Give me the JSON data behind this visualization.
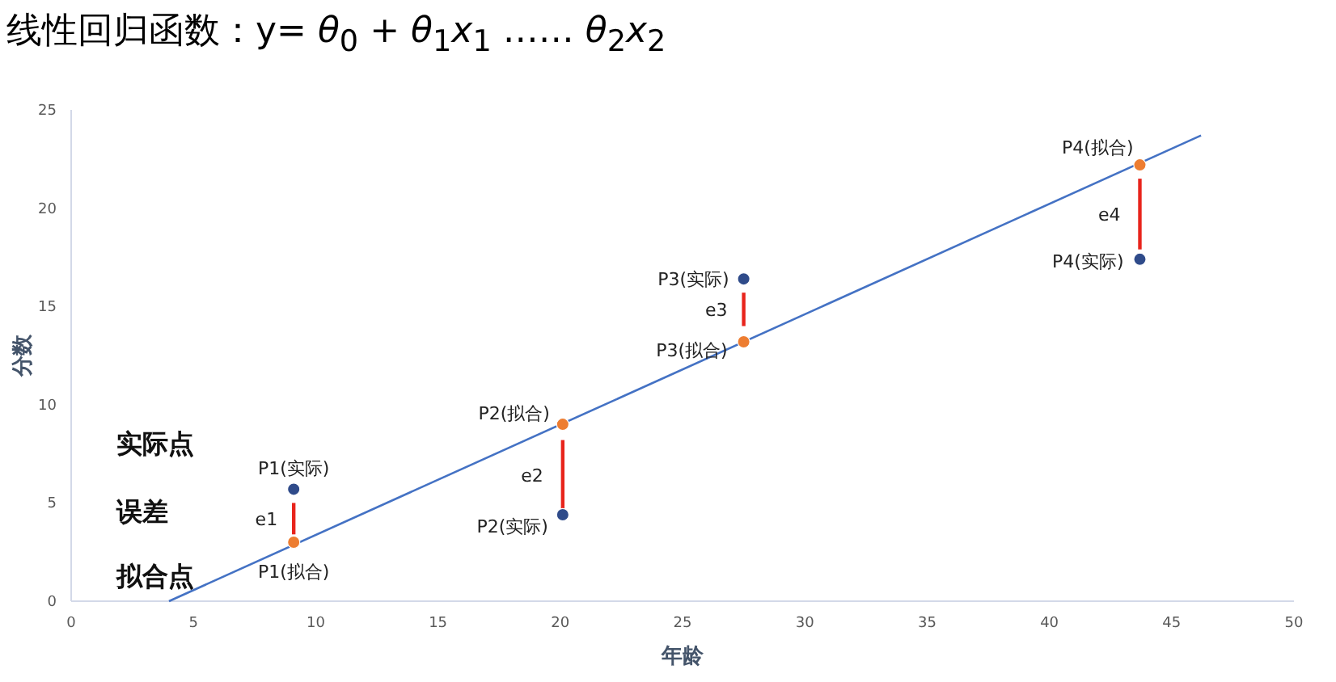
{
  "chart_data": {
    "type": "scatter",
    "title": "线性回归函数：y= *θ*$_{0}$ + *θ*$_{1}$*x*$_{1}$ …… *θ*$_{2}$*x*$_{2}$",
    "xlabel": "年龄",
    "ylabel": "分数",
    "xlim": [
      0,
      50
    ],
    "xticks": [
      0,
      5,
      10,
      15,
      20,
      25,
      30,
      35,
      40,
      45,
      50
    ],
    "ylim": [
      0,
      25
    ],
    "yticks": [
      0,
      5,
      10,
      15,
      20,
      25
    ],
    "grid": false,
    "series": [
      {
        "color": "#2f4b8a",
        "marker": "circle",
        "x": [
          9.1,
          20.1,
          27.5,
          43.7
        ],
        "values": [
          5.7,
          4.4,
          16.4,
          17.4
        ]
      },
      {
        "color": "#ed7d31",
        "marker": "circle",
        "x": [
          9.1,
          20.1,
          27.5,
          43.7
        ],
        "values": [
          3.0,
          9.0,
          13.2,
          22.2
        ]
      },
      {
        "type": "line",
        "marker": "none",
        "color": "#4472c4",
        "x": [
          4.0,
          46.2
        ],
        "values": [
          0,
          23.7
        ]
      },
      {
        "type": "line",
        "marker": "none",
        "color": "#e8241c",
        "x": [
          9.1,
          9.1
        ],
        "values": [
          3.4,
          5.0
        ]
      },
      {
        "type": "line",
        "marker": "none",
        "color": "#e8241c",
        "x": [
          20.1,
          20.1
        ],
        "values": [
          4.6,
          8.2
        ]
      },
      {
        "type": "line",
        "marker": "none",
        "color": "#e8241c",
        "x": [
          27.5,
          27.5
        ],
        "values": [
          14.0,
          15.7
        ]
      },
      {
        "type": "line",
        "marker": "none",
        "color": "#e8241c",
        "x": [
          43.7,
          43.7
        ],
        "values": [
          17.9,
          21.5
        ]
      }
    ],
    "annotations": [
      {
        "text": "P1(实际)",
        "x": 9.1,
        "y": 5.7
      },
      {
        "text": "P1(拟合)",
        "x": 9.1,
        "y": 3.0
      },
      {
        "text": "P2(拟合)",
        "x": 20.1,
        "y": 9.0
      },
      {
        "text": "P2(实际)",
        "x": 20.1,
        "y": 4.4
      },
      {
        "text": "P3(实际)",
        "x": 27.5,
        "y": 16.4
      },
      {
        "text": "P3(拟合)",
        "x": 27.5,
        "y": 13.2
      },
      {
        "text": "P4(拟合)",
        "x": 43.7,
        "y": 22.2
      },
      {
        "text": "P4(实际)",
        "x": 43.7,
        "y": 17.4
      },
      {
        "text": "e1",
        "x": 9.1,
        "y": 4.2
      },
      {
        "text": "e2",
        "x": 20.1,
        "y": 6.4
      },
      {
        "text": "e3",
        "x": 27.5,
        "y": 14.85
      },
      {
        "text": "e4",
        "x": 43.7,
        "y": 19.7
      },
      "实际点",
      "误差",
      "拟合点"
    ]
  }
}
